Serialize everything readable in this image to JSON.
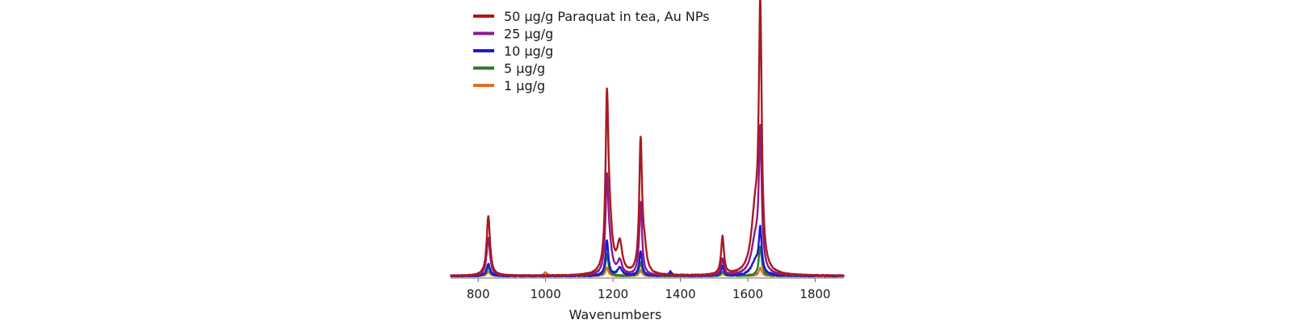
{
  "chart_data": {
    "type": "line",
    "xlabel": "Wavenumbers",
    "ylabel": "",
    "xlim": [
      718,
      1885
    ],
    "ylim": [
      0,
      100
    ],
    "x_ticks": [
      800,
      1000,
      1200,
      1400,
      1600,
      1800
    ],
    "grid": false,
    "legend_position": "top-left",
    "series": [
      {
        "name": "50 µg/g Paraquat in tea, Au NPs",
        "color": "#a81a1e",
        "peaks": [
          [
            830,
            22,
            6
          ],
          [
            1182,
            60,
            5
          ],
          [
            1190,
            15,
            9
          ],
          [
            1220,
            11,
            9
          ],
          [
            1282,
            48,
            5
          ],
          [
            1293,
            8,
            8
          ],
          [
            1525,
            14,
            5
          ],
          [
            1622,
            22,
            14
          ],
          [
            1637,
            93,
            5
          ]
        ],
        "baseline_noise": 0.3
      },
      {
        "name": "25 µg/g",
        "color": "#8b1a8b",
        "peaks": [
          [
            830,
            14,
            6
          ],
          [
            1182,
            33,
            5
          ],
          [
            1190,
            8,
            9
          ],
          [
            1220,
            5,
            8
          ],
          [
            1282,
            27,
            5
          ],
          [
            1525,
            6,
            5
          ],
          [
            1622,
            12,
            14
          ],
          [
            1637,
            50,
            5
          ]
        ],
        "baseline_noise": 0.3
      },
      {
        "name": "10 µg/g",
        "color": "#1a1ad4",
        "peaks": [
          [
            830,
            4.5,
            6
          ],
          [
            1182,
            13,
            5
          ],
          [
            1220,
            3,
            8
          ],
          [
            1282,
            9,
            5
          ],
          [
            1370,
            1.5,
            5
          ],
          [
            1525,
            3.5,
            5
          ],
          [
            1622,
            5,
            14
          ],
          [
            1637,
            16,
            5
          ]
        ],
        "baseline_noise": 0.5
      },
      {
        "name": "5 µg/g",
        "color": "#2a7a2a",
        "peaks": [
          [
            830,
            3,
            6
          ],
          [
            1182,
            8,
            5
          ],
          [
            1282,
            5,
            5
          ],
          [
            1525,
            1.5,
            5
          ],
          [
            1637,
            11,
            5
          ]
        ],
        "baseline_noise": 0.4
      },
      {
        "name": "1 µg/g",
        "color": "#e07020",
        "peaks": [
          [
            830,
            1.5,
            6
          ],
          [
            1000,
            1.2,
            6
          ],
          [
            1182,
            3,
            5
          ],
          [
            1282,
            2,
            5
          ],
          [
            1525,
            1,
            5
          ],
          [
            1560,
            1,
            10
          ],
          [
            1637,
            3,
            5
          ]
        ],
        "baseline_noise": 0.4
      }
    ]
  }
}
